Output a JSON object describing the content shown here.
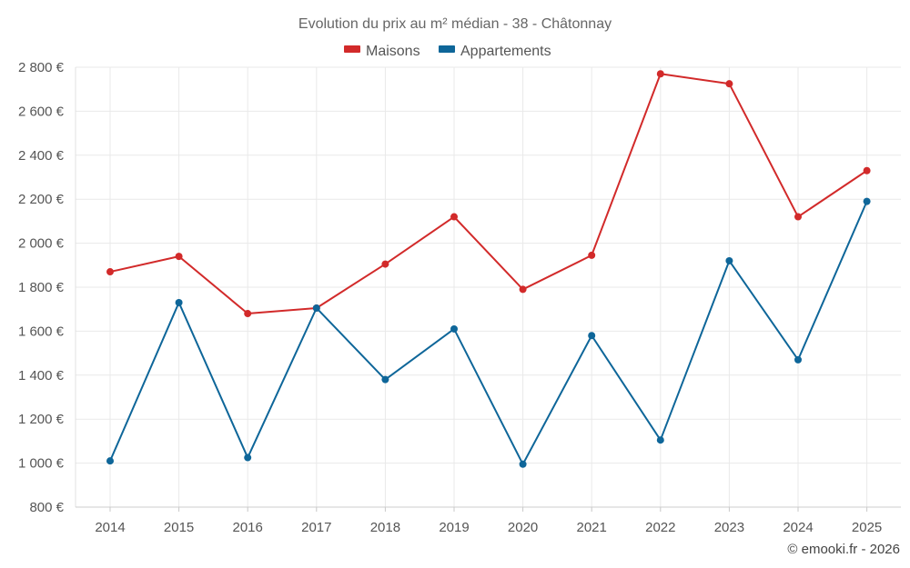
{
  "chart_data": {
    "type": "line",
    "title": "Evolution du prix au m² médian - 38 - Châtonnay",
    "categories": [
      "2014",
      "2015",
      "2016",
      "2017",
      "2018",
      "2019",
      "2020",
      "2021",
      "2022",
      "2023",
      "2024",
      "2025"
    ],
    "series": [
      {
        "name": "Maisons",
        "color": "#d22a2a",
        "values": [
          1870,
          1940,
          1680,
          1705,
          1905,
          2120,
          1790,
          1945,
          2770,
          2725,
          2120,
          2330
        ]
      },
      {
        "name": "Appartements",
        "color": "#0e6699",
        "values": [
          1010,
          1730,
          1025,
          1705,
          1380,
          1610,
          995,
          1580,
          1105,
          1920,
          1470,
          2190
        ]
      }
    ],
    "ylim": [
      800,
      2800
    ],
    "yticks": [
      800,
      1000,
      1200,
      1400,
      1600,
      1800,
      2000,
      2200,
      2400,
      2600,
      2800
    ],
    "ytick_labels": [
      "800 €",
      "1 000 €",
      "1 200 €",
      "1 400 €",
      "1 600 €",
      "1 800 €",
      "2 000 €",
      "2 200 €",
      "2 400 €",
      "2 600 €",
      "2 800 €"
    ],
    "xlabel": "",
    "ylabel": "",
    "grid": true,
    "legend_position": "top-center"
  },
  "credit": "© emooki.fr - 2026"
}
